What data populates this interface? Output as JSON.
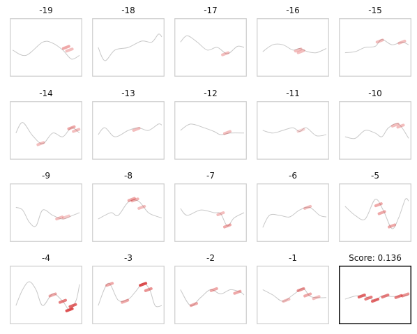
{
  "chart_data": {
    "type": "line",
    "layout": {
      "rows": 4,
      "cols": 5
    },
    "colors": {
      "trace": "#c8c8c8",
      "highlight": "#d62728",
      "frame": "#cccccc",
      "final_frame": "#111111"
    },
    "panels": [
      {
        "title": "-19",
        "line": [
          [
            0,
            0.45
          ],
          [
            0.2,
            0.35
          ],
          [
            0.45,
            0.6
          ],
          [
            0.6,
            0.58
          ],
          [
            0.75,
            0.45
          ],
          [
            0.88,
            0.28
          ],
          [
            1,
            0.35
          ]
        ],
        "highlights": [
          [
            0.8,
            0.5,
            0.4
          ],
          [
            0.85,
            0.45,
            0.3
          ]
        ]
      },
      {
        "title": "-18",
        "line": [
          [
            0.05,
            0.5
          ],
          [
            0.15,
            0.25
          ],
          [
            0.3,
            0.45
          ],
          [
            0.5,
            0.5
          ],
          [
            0.7,
            0.62
          ],
          [
            0.85,
            0.6
          ],
          [
            0.95,
            0.75
          ],
          [
            1,
            0.7
          ]
        ],
        "highlights": []
      },
      {
        "title": "-17",
        "line": [
          [
            0.05,
            0.6
          ],
          [
            0.15,
            0.72
          ],
          [
            0.3,
            0.6
          ],
          [
            0.45,
            0.45
          ],
          [
            0.6,
            0.5
          ],
          [
            0.75,
            0.38
          ],
          [
            0.9,
            0.52
          ],
          [
            1,
            0.5
          ]
        ],
        "highlights": [
          [
            0.72,
            0.38,
            0.3
          ]
        ]
      },
      {
        "title": "-16",
        "line": [
          [
            0.05,
            0.42
          ],
          [
            0.2,
            0.55
          ],
          [
            0.35,
            0.55
          ],
          [
            0.5,
            0.45
          ],
          [
            0.6,
            0.48
          ],
          [
            0.72,
            0.42
          ],
          [
            0.85,
            0.4
          ],
          [
            1,
            0.48
          ]
        ],
        "highlights": [
          [
            0.58,
            0.45,
            0.3
          ],
          [
            0.62,
            0.42,
            0.3
          ]
        ]
      },
      {
        "title": "-15",
        "line": [
          [
            0.05,
            0.4
          ],
          [
            0.2,
            0.42
          ],
          [
            0.35,
            0.5
          ],
          [
            0.5,
            0.52
          ],
          [
            0.6,
            0.65
          ],
          [
            0.75,
            0.55
          ],
          [
            0.9,
            0.6
          ],
          [
            1,
            0.55
          ]
        ],
        "highlights": [
          [
            0.57,
            0.62,
            0.3
          ],
          [
            0.9,
            0.6,
            0.3
          ]
        ]
      },
      {
        "title": "-14",
        "line": [
          [
            0.05,
            0.45
          ],
          [
            0.15,
            0.65
          ],
          [
            0.3,
            0.4
          ],
          [
            0.45,
            0.25
          ],
          [
            0.6,
            0.45
          ],
          [
            0.75,
            0.38
          ],
          [
            0.88,
            0.55
          ],
          [
            1,
            0.45
          ]
        ],
        "highlights": [
          [
            0.42,
            0.25,
            0.3
          ],
          [
            0.88,
            0.55,
            0.4
          ],
          [
            0.95,
            0.5,
            0.3
          ]
        ]
      },
      {
        "title": "-13",
        "line": [
          [
            0.05,
            0.42
          ],
          [
            0.15,
            0.55
          ],
          [
            0.3,
            0.38
          ],
          [
            0.5,
            0.5
          ],
          [
            0.65,
            0.55
          ],
          [
            0.8,
            0.5
          ],
          [
            0.95,
            0.62
          ],
          [
            1,
            0.6
          ]
        ],
        "highlights": [
          [
            0.62,
            0.52,
            0.3
          ]
        ]
      },
      {
        "title": "-12",
        "line": [
          [
            0.05,
            0.5
          ],
          [
            0.2,
            0.62
          ],
          [
            0.4,
            0.55
          ],
          [
            0.55,
            0.48
          ],
          [
            0.65,
            0.42
          ],
          [
            0.8,
            0.45
          ],
          [
            1,
            0.45
          ]
        ],
        "highlights": [
          [
            0.75,
            0.46,
            0.3
          ]
        ]
      },
      {
        "title": "-11",
        "line": [
          [
            0.05,
            0.5
          ],
          [
            0.2,
            0.45
          ],
          [
            0.35,
            0.5
          ],
          [
            0.5,
            0.55
          ],
          [
            0.6,
            0.48
          ],
          [
            0.7,
            0.55
          ],
          [
            0.85,
            0.4
          ],
          [
            1,
            0.42
          ]
        ],
        "highlights": [
          [
            0.62,
            0.5,
            0.2
          ]
        ]
      },
      {
        "title": "-10",
        "line": [
          [
            0.05,
            0.38
          ],
          [
            0.2,
            0.35
          ],
          [
            0.35,
            0.5
          ],
          [
            0.5,
            0.45
          ],
          [
            0.6,
            0.38
          ],
          [
            0.7,
            0.55
          ],
          [
            0.85,
            0.62
          ],
          [
            1,
            0.35
          ]
        ],
        "highlights": [
          [
            0.8,
            0.6,
            0.3
          ],
          [
            0.88,
            0.58,
            0.3
          ]
        ]
      },
      {
        "title": "-9",
        "line": [
          [
            0.05,
            0.6
          ],
          [
            0.15,
            0.55
          ],
          [
            0.25,
            0.32
          ],
          [
            0.35,
            0.25
          ],
          [
            0.45,
            0.55
          ],
          [
            0.6,
            0.45
          ],
          [
            0.75,
            0.38
          ],
          [
            0.9,
            0.45
          ],
          [
            1,
            0.5
          ]
        ],
        "highlights": [
          [
            0.7,
            0.4,
            0.3
          ],
          [
            0.8,
            0.42,
            0.25
          ]
        ]
      },
      {
        "title": "-8",
        "line": [
          [
            0.05,
            0.38
          ],
          [
            0.15,
            0.45
          ],
          [
            0.25,
            0.5
          ],
          [
            0.35,
            0.45
          ],
          [
            0.5,
            0.7
          ],
          [
            0.65,
            0.72
          ],
          [
            0.8,
            0.5
          ],
          [
            0.95,
            0.42
          ],
          [
            1,
            0.4
          ]
        ],
        "highlights": [
          [
            0.55,
            0.75,
            0.4
          ],
          [
            0.6,
            0.74,
            0.35
          ],
          [
            0.7,
            0.6,
            0.3
          ]
        ]
      },
      {
        "title": "-7",
        "line": [
          [
            0.05,
            0.58
          ],
          [
            0.15,
            0.45
          ],
          [
            0.35,
            0.55
          ],
          [
            0.55,
            0.5
          ],
          [
            0.65,
            0.48
          ],
          [
            0.75,
            0.25
          ],
          [
            0.85,
            0.4
          ],
          [
            1,
            0.5
          ]
        ],
        "highlights": [
          [
            0.65,
            0.48,
            0.3
          ],
          [
            0.75,
            0.25,
            0.4
          ]
        ]
      },
      {
        "title": "-6",
        "line": [
          [
            0.05,
            0.22
          ],
          [
            0.15,
            0.45
          ],
          [
            0.3,
            0.45
          ],
          [
            0.45,
            0.42
          ],
          [
            0.6,
            0.55
          ],
          [
            0.75,
            0.6
          ],
          [
            0.9,
            0.45
          ],
          [
            1,
            0.42
          ]
        ],
        "highlights": [
          [
            0.72,
            0.6,
            0.3
          ]
        ]
      },
      {
        "title": "-5",
        "line": [
          [
            0.05,
            0.62
          ],
          [
            0.2,
            0.45
          ],
          [
            0.35,
            0.38
          ],
          [
            0.5,
            0.75
          ],
          [
            0.62,
            0.55
          ],
          [
            0.75,
            0.2
          ],
          [
            0.85,
            0.4
          ],
          [
            0.95,
            0.75
          ],
          [
            1,
            0.72
          ]
        ],
        "highlights": [
          [
            0.55,
            0.65,
            0.4
          ],
          [
            0.6,
            0.5,
            0.4
          ],
          [
            0.75,
            0.25,
            0.4
          ]
        ]
      },
      {
        "title": "-4",
        "line": [
          [
            0.05,
            0.3
          ],
          [
            0.15,
            0.6
          ],
          [
            0.25,
            0.75
          ],
          [
            0.35,
            0.6
          ],
          [
            0.45,
            0.3
          ],
          [
            0.6,
            0.52
          ],
          [
            0.75,
            0.38
          ],
          [
            0.85,
            0.22
          ],
          [
            0.95,
            0.4
          ],
          [
            1,
            0.7
          ]
        ],
        "highlights": [
          [
            0.6,
            0.5,
            0.4
          ],
          [
            0.75,
            0.38,
            0.6
          ],
          [
            0.85,
            0.22,
            0.8
          ],
          [
            0.9,
            0.3,
            0.7
          ]
        ]
      },
      {
        "title": "-3",
        "line": [
          [
            0.05,
            0.3
          ],
          [
            0.2,
            0.72
          ],
          [
            0.35,
            0.4
          ],
          [
            0.5,
            0.42
          ],
          [
            0.6,
            0.55
          ],
          [
            0.72,
            0.72
          ],
          [
            0.82,
            0.6
          ],
          [
            0.9,
            0.3
          ],
          [
            1,
            0.3
          ]
        ],
        "highlights": [
          [
            0.22,
            0.7,
            0.4
          ],
          [
            0.45,
            0.38,
            0.4
          ],
          [
            0.72,
            0.7,
            0.8
          ],
          [
            0.8,
            0.6,
            0.5
          ]
        ]
      },
      {
        "title": "-2",
        "line": [
          [
            0.05,
            0.6
          ],
          [
            0.2,
            0.3
          ],
          [
            0.35,
            0.45
          ],
          [
            0.5,
            0.6
          ],
          [
            0.65,
            0.52
          ],
          [
            0.8,
            0.6
          ],
          [
            0.95,
            0.55
          ],
          [
            1,
            0.5
          ]
        ],
        "highlights": [
          [
            0.25,
            0.32,
            0.4
          ],
          [
            0.55,
            0.6,
            0.4
          ],
          [
            0.9,
            0.55,
            0.4
          ]
        ]
      },
      {
        "title": "-1",
        "line": [
          [
            0.05,
            0.6
          ],
          [
            0.2,
            0.5
          ],
          [
            0.35,
            0.38
          ],
          [
            0.5,
            0.5
          ],
          [
            0.65,
            0.62
          ],
          [
            0.75,
            0.48
          ],
          [
            0.85,
            0.45
          ],
          [
            1,
            0.45
          ]
        ],
        "highlights": [
          [
            0.4,
            0.4,
            0.3
          ],
          [
            0.62,
            0.6,
            0.5
          ],
          [
            0.72,
            0.5,
            0.4
          ],
          [
            0.85,
            0.45,
            0.3
          ]
        ]
      },
      {
        "title": "Score: 0.136",
        "final": true,
        "line": [
          [
            0.05,
            0.42
          ],
          [
            0.2,
            0.48
          ],
          [
            0.3,
            0.48
          ],
          [
            0.4,
            0.45
          ],
          [
            0.5,
            0.4
          ],
          [
            0.6,
            0.48
          ],
          [
            0.75,
            0.47
          ],
          [
            0.9,
            0.48
          ],
          [
            1,
            0.5
          ]
        ],
        "highlights": [
          [
            0.3,
            0.48,
            0.7
          ],
          [
            0.4,
            0.44,
            0.6
          ],
          [
            0.5,
            0.4,
            0.7
          ],
          [
            0.65,
            0.48,
            0.6
          ],
          [
            0.85,
            0.47,
            0.6
          ],
          [
            0.95,
            0.5,
            0.5
          ]
        ]
      }
    ]
  }
}
